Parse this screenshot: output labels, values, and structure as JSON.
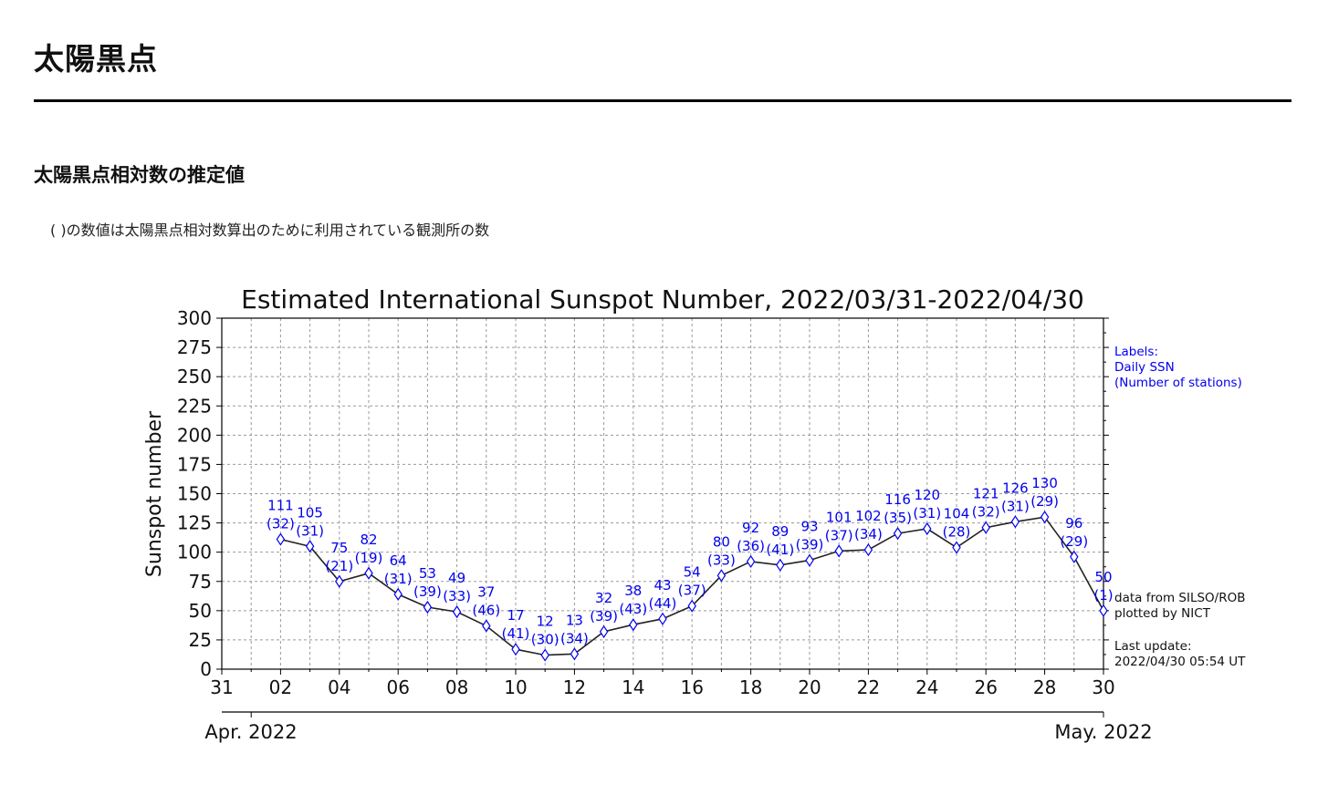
{
  "page": {
    "title": "太陽黒点",
    "section_title": "太陽黒点相対数の推定値",
    "note": "( )の数値は太陽黒点相対数算出のために利用されている観測所の数"
  },
  "colors": {
    "line": "#222222",
    "marker": "#0000ee",
    "label": "#0000ee",
    "grid": "#999999"
  },
  "chart_data": {
    "type": "line",
    "title": "Estimated International Sunspot Number, 2022/03/31-2022/04/30",
    "ylabel": "Sunspot number",
    "xlabel": "",
    "ylim": [
      0,
      300
    ],
    "yticks": [
      0,
      25,
      50,
      75,
      100,
      125,
      150,
      175,
      200,
      225,
      250,
      275,
      300
    ],
    "xlim": [
      "2022-03-31",
      "2022-04-30"
    ],
    "xtick_labels": [
      "31",
      "02",
      "04",
      "06",
      "08",
      "10",
      "12",
      "14",
      "16",
      "18",
      "20",
      "22",
      "24",
      "26",
      "28",
      "30"
    ],
    "month_labels": [
      "Apr. 2022",
      "May. 2022"
    ],
    "grid": true,
    "marker": "thin-diamond",
    "legend_text": [
      "Labels:",
      "Daily SSN",
      "(Number of stations)"
    ],
    "source_text": [
      "data from SILSO/ROB",
      "plotted by NICT"
    ],
    "update_text": [
      "Last update:",
      "2022/04/30 05:54 UT"
    ],
    "series": [
      {
        "x": [
          "2022-04-02",
          "2022-04-03",
          "2022-04-04",
          "2022-04-05",
          "2022-04-06",
          "2022-04-07",
          "2022-04-08",
          "2022-04-09",
          "2022-04-10",
          "2022-04-11",
          "2022-04-12",
          "2022-04-13",
          "2022-04-14",
          "2022-04-15",
          "2022-04-16",
          "2022-04-17",
          "2022-04-18",
          "2022-04-19",
          "2022-04-20",
          "2022-04-21",
          "2022-04-22",
          "2022-04-23",
          "2022-04-24",
          "2022-04-25",
          "2022-04-26",
          "2022-04-27",
          "2022-04-28",
          "2022-04-29",
          "2022-04-30"
        ],
        "values": [
          111,
          105,
          75,
          82,
          64,
          53,
          49,
          37,
          17,
          12,
          13,
          32,
          38,
          43,
          54,
          80,
          92,
          89,
          93,
          101,
          102,
          116,
          120,
          104,
          121,
          126,
          130,
          96,
          50
        ],
        "stations": [
          32,
          31,
          21,
          19,
          31,
          39,
          33,
          46,
          41,
          30,
          34,
          39,
          43,
          44,
          37,
          33,
          36,
          41,
          39,
          37,
          34,
          35,
          31,
          28,
          32,
          31,
          29,
          29,
          1
        ]
      }
    ]
  }
}
